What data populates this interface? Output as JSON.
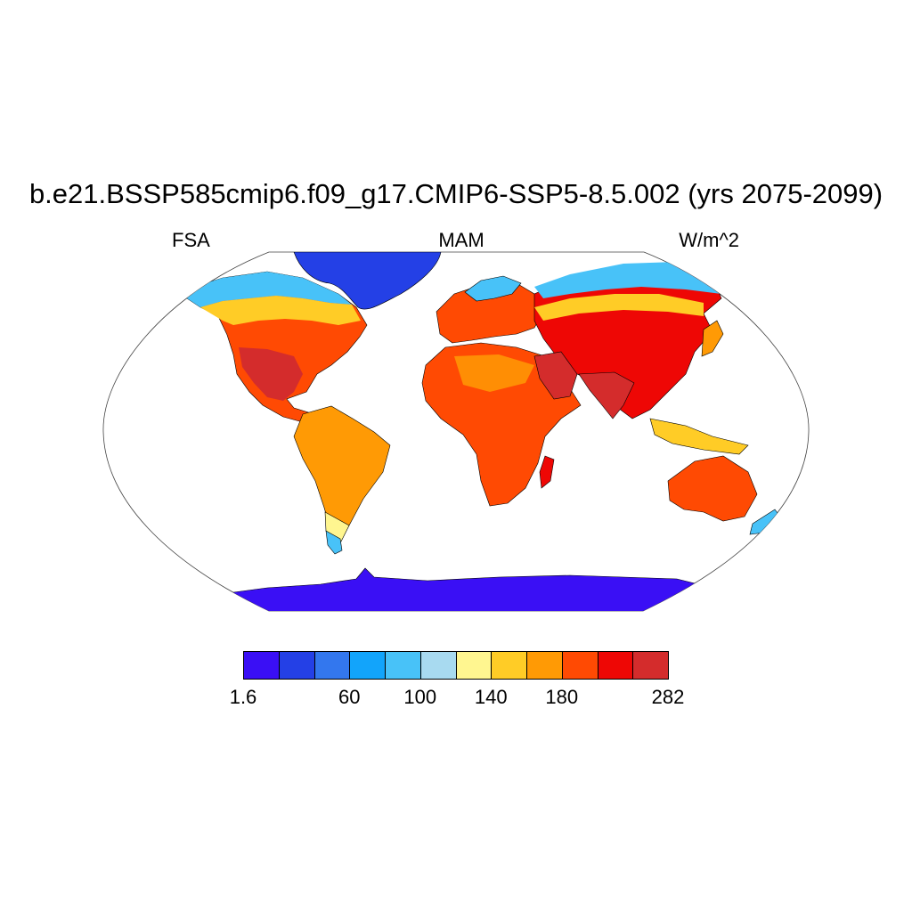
{
  "title": "b.e21.BSSP585cmip6.f09_g17.CMIP6-SSP5-8.5.002 (yrs 2075-2099)",
  "left_label": "FSA",
  "center_label": "MAM",
  "right_label": "W/m^2",
  "colorbar": {
    "colors": [
      "#3a0ff5",
      "#2440e6",
      "#3377ee",
      "#12a4fb",
      "#48c2f8",
      "#a8daf0",
      "#fff690",
      "#ffcc26",
      "#ff9a05",
      "#ff4a03",
      "#ee0705",
      "#d42c2c"
    ],
    "labels": [
      {
        "text": "1.6",
        "index": 0
      },
      {
        "text": "60",
        "index": 3
      },
      {
        "text": "100",
        "index": 5
      },
      {
        "text": "140",
        "index": 7
      },
      {
        "text": "180",
        "index": 9
      },
      {
        "text": "282",
        "index": 12
      }
    ]
  },
  "map": {
    "projection": "robinson",
    "ocean_color": "#ffffff",
    "coastline_color": "#000000"
  }
}
